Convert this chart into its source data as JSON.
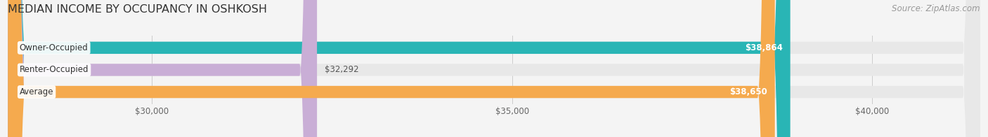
{
  "title": "MEDIAN INCOME BY OCCUPANCY IN OSHKOSH",
  "source": "Source: ZipAtlas.com",
  "categories": [
    "Owner-Occupied",
    "Renter-Occupied",
    "Average"
  ],
  "values": [
    38864,
    32292,
    38650
  ],
  "bar_colors": [
    "#29b5b5",
    "#c9aed6",
    "#f5aa4e"
  ],
  "bar_labels": [
    "$38,864",
    "$32,292",
    "$38,650"
  ],
  "label_inside": [
    true,
    false,
    true
  ],
  "xlim": [
    28000,
    41500
  ],
  "xticks": [
    30000,
    35000,
    40000
  ],
  "xticklabels": [
    "$30,000",
    "$35,000",
    "$40,000"
  ],
  "bg_color": "#f4f4f4",
  "bar_bg_color": "#e8e8e8",
  "title_color": "#333333",
  "source_color": "#999999",
  "title_fontsize": 11.5,
  "source_fontsize": 8.5,
  "label_fontsize": 8.5,
  "category_fontsize": 8.5,
  "tick_fontsize": 8.5,
  "bar_height": 0.55
}
